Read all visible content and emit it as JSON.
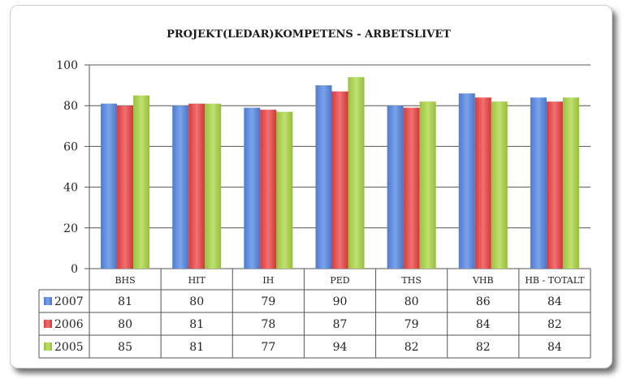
{
  "chart_data": {
    "type": "bar",
    "title": "PROJEKT(LEDAR)KOMPETENS - ARBETSLIVET",
    "categories": [
      "BHS",
      "HIT",
      "IH",
      "PED",
      "THS",
      "VHB",
      "HB - TOTALT"
    ],
    "series": [
      {
        "name": "2007",
        "values": [
          81,
          80,
          79,
          90,
          80,
          86,
          84
        ],
        "color": "#5b86d8"
      },
      {
        "name": "2006",
        "values": [
          80,
          81,
          78,
          87,
          79,
          84,
          82
        ],
        "color": "#e8494a"
      },
      {
        "name": "2005",
        "values": [
          85,
          81,
          77,
          94,
          82,
          82,
          84
        ],
        "color": "#a8d04e"
      }
    ],
    "ylim": [
      0,
      100
    ],
    "yticks": [
      0,
      20,
      40,
      60,
      80,
      100
    ],
    "grid": true,
    "legend": "data-table-left"
  }
}
